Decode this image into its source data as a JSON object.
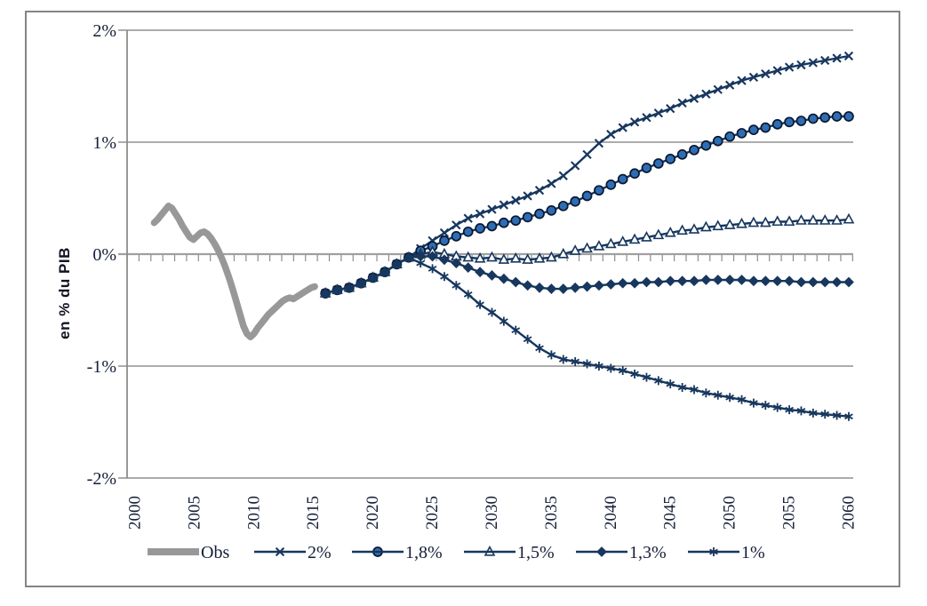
{
  "chart_data": {
    "type": "line",
    "title": "",
    "xlabel": "",
    "ylabel": "en % du PIB",
    "xlim": [
      2000,
      2060
    ],
    "ylim": [
      -2,
      2
    ],
    "grid": "horizontal-solid",
    "legend_position": "bottom",
    "y_ticks": [
      {
        "value": 2,
        "label": "2%"
      },
      {
        "value": 1,
        "label": "1%"
      },
      {
        "value": 0,
        "label": "0%"
      },
      {
        "value": -1,
        "label": "-1%"
      },
      {
        "value": -2,
        "label": "-2%"
      }
    ],
    "x_ticks": [
      {
        "value": 2000,
        "label": "2000"
      },
      {
        "value": 2005,
        "label": "2005"
      },
      {
        "value": 2010,
        "label": "2010"
      },
      {
        "value": 2015,
        "label": "2015"
      },
      {
        "value": 2020,
        "label": "2020"
      },
      {
        "value": 2025,
        "label": "2025"
      },
      {
        "value": 2030,
        "label": "2030"
      },
      {
        "value": 2035,
        "label": "2035"
      },
      {
        "value": 2040,
        "label": "2040"
      },
      {
        "value": 2045,
        "label": "2045"
      },
      {
        "value": 2050,
        "label": "2050"
      },
      {
        "value": 2055,
        "label": "2055"
      },
      {
        "value": 2060,
        "label": "2060"
      }
    ],
    "colors": {
      "obs": "#989898",
      "scenario": "#17375E",
      "circle_fill": "#2E6DB4",
      "marker_ring": "#0A1830",
      "grid": "#A0A0A0",
      "axis": "#8C8C8C",
      "text": "#141E38"
    },
    "series": [
      {
        "name": "Obs",
        "marker": "none",
        "role": "observed",
        "points": [
          [
            2001.6,
            0.28
          ],
          [
            2001.9,
            0.31
          ],
          [
            2002.2,
            0.35
          ],
          [
            2002.5,
            0.39
          ],
          [
            2002.8,
            0.43
          ],
          [
            2003.1,
            0.41
          ],
          [
            2003.4,
            0.36
          ],
          [
            2003.7,
            0.31
          ],
          [
            2004,
            0.25
          ],
          [
            2004.3,
            0.2
          ],
          [
            2004.6,
            0.15
          ],
          [
            2004.9,
            0.13
          ],
          [
            2005.2,
            0.16
          ],
          [
            2005.5,
            0.19
          ],
          [
            2005.8,
            0.2
          ],
          [
            2006.1,
            0.18
          ],
          [
            2006.4,
            0.14
          ],
          [
            2006.7,
            0.09
          ],
          [
            2007,
            0.03
          ],
          [
            2007.3,
            -0.04
          ],
          [
            2007.6,
            -0.12
          ],
          [
            2007.9,
            -0.21
          ],
          [
            2008.2,
            -0.31
          ],
          [
            2008.5,
            -0.42
          ],
          [
            2008.8,
            -0.53
          ],
          [
            2009.1,
            -0.64
          ],
          [
            2009.4,
            -0.71
          ],
          [
            2009.7,
            -0.74
          ],
          [
            2010,
            -0.71
          ],
          [
            2010.3,
            -0.66
          ],
          [
            2010.6,
            -0.62
          ],
          [
            2010.9,
            -0.58
          ],
          [
            2011.2,
            -0.54
          ],
          [
            2011.5,
            -0.51
          ],
          [
            2011.8,
            -0.48
          ],
          [
            2012.1,
            -0.45
          ],
          [
            2012.4,
            -0.42
          ],
          [
            2012.7,
            -0.4
          ],
          [
            2013,
            -0.39
          ],
          [
            2013.3,
            -0.4
          ],
          [
            2013.6,
            -0.38
          ],
          [
            2013.9,
            -0.36
          ],
          [
            2014.2,
            -0.34
          ],
          [
            2014.5,
            -0.32
          ],
          [
            2014.8,
            -0.3
          ],
          [
            2015.1,
            -0.29
          ]
        ]
      },
      {
        "name": "2%",
        "marker": "x",
        "role": "scenario",
        "points": [
          [
            2016,
            -0.35
          ],
          [
            2017,
            -0.32
          ],
          [
            2018,
            -0.3
          ],
          [
            2019,
            -0.26
          ],
          [
            2020,
            -0.21
          ],
          [
            2021,
            -0.16
          ],
          [
            2022,
            -0.09
          ],
          [
            2023,
            -0.03
          ],
          [
            2024,
            0.05
          ],
          [
            2025,
            0.12
          ],
          [
            2026,
            0.19
          ],
          [
            2027,
            0.26
          ],
          [
            2028,
            0.32
          ],
          [
            2029,
            0.36
          ],
          [
            2030,
            0.4
          ],
          [
            2031,
            0.44
          ],
          [
            2032,
            0.48
          ],
          [
            2033,
            0.52
          ],
          [
            2034,
            0.57
          ],
          [
            2035,
            0.63
          ],
          [
            2036,
            0.7
          ],
          [
            2037,
            0.79
          ],
          [
            2038,
            0.89
          ],
          [
            2039,
            0.99
          ],
          [
            2040,
            1.07
          ],
          [
            2041,
            1.13
          ],
          [
            2042,
            1.18
          ],
          [
            2043,
            1.22
          ],
          [
            2044,
            1.26
          ],
          [
            2045,
            1.3
          ],
          [
            2046,
            1.35
          ],
          [
            2047,
            1.39
          ],
          [
            2048,
            1.43
          ],
          [
            2049,
            1.47
          ],
          [
            2050,
            1.51
          ],
          [
            2051,
            1.55
          ],
          [
            2052,
            1.58
          ],
          [
            2053,
            1.61
          ],
          [
            2054,
            1.64
          ],
          [
            2055,
            1.67
          ],
          [
            2056,
            1.69
          ],
          [
            2057,
            1.71
          ],
          [
            2058,
            1.73
          ],
          [
            2059,
            1.75
          ],
          [
            2060,
            1.77
          ]
        ]
      },
      {
        "name": "1,8%",
        "marker": "circle",
        "role": "scenario",
        "points": [
          [
            2016,
            -0.35
          ],
          [
            2017,
            -0.32
          ],
          [
            2018,
            -0.3
          ],
          [
            2019,
            -0.26
          ],
          [
            2020,
            -0.21
          ],
          [
            2021,
            -0.16
          ],
          [
            2022,
            -0.09
          ],
          [
            2023,
            -0.03
          ],
          [
            2024,
            0.03
          ],
          [
            2025,
            0.07
          ],
          [
            2026,
            0.12
          ],
          [
            2027,
            0.16
          ],
          [
            2028,
            0.2
          ],
          [
            2029,
            0.23
          ],
          [
            2030,
            0.25
          ],
          [
            2031,
            0.28
          ],
          [
            2032,
            0.3
          ],
          [
            2033,
            0.33
          ],
          [
            2034,
            0.36
          ],
          [
            2035,
            0.39
          ],
          [
            2036,
            0.43
          ],
          [
            2037,
            0.47
          ],
          [
            2038,
            0.52
          ],
          [
            2039,
            0.57
          ],
          [
            2040,
            0.62
          ],
          [
            2041,
            0.67
          ],
          [
            2042,
            0.72
          ],
          [
            2043,
            0.77
          ],
          [
            2044,
            0.81
          ],
          [
            2045,
            0.85
          ],
          [
            2046,
            0.89
          ],
          [
            2047,
            0.93
          ],
          [
            2048,
            0.97
          ],
          [
            2049,
            1.01
          ],
          [
            2050,
            1.05
          ],
          [
            2051,
            1.08
          ],
          [
            2052,
            1.11
          ],
          [
            2053,
            1.13
          ],
          [
            2054,
            1.16
          ],
          [
            2055,
            1.18
          ],
          [
            2056,
            1.19
          ],
          [
            2057,
            1.21
          ],
          [
            2058,
            1.22
          ],
          [
            2059,
            1.23
          ],
          [
            2060,
            1.23
          ]
        ]
      },
      {
        "name": "1,5%",
        "marker": "triangle",
        "role": "scenario",
        "points": [
          [
            2016,
            -0.35
          ],
          [
            2017,
            -0.32
          ],
          [
            2018,
            -0.3
          ],
          [
            2019,
            -0.26
          ],
          [
            2020,
            -0.21
          ],
          [
            2021,
            -0.16
          ],
          [
            2022,
            -0.09
          ],
          [
            2023,
            -0.03
          ],
          [
            2024,
            0
          ],
          [
            2025,
            0.02
          ],
          [
            2026,
            0
          ],
          [
            2027,
            -0.02
          ],
          [
            2028,
            -0.03
          ],
          [
            2029,
            -0.04
          ],
          [
            2030,
            -0.03
          ],
          [
            2031,
            -0.05
          ],
          [
            2032,
            -0.04
          ],
          [
            2033,
            -0.05
          ],
          [
            2034,
            -0.04
          ],
          [
            2035,
            -0.03
          ],
          [
            2036,
            0
          ],
          [
            2037,
            0.03
          ],
          [
            2038,
            0.05
          ],
          [
            2039,
            0.07
          ],
          [
            2040,
            0.09
          ],
          [
            2041,
            0.11
          ],
          [
            2042,
            0.13
          ],
          [
            2043,
            0.15
          ],
          [
            2044,
            0.17
          ],
          [
            2045,
            0.19
          ],
          [
            2046,
            0.21
          ],
          [
            2047,
            0.22
          ],
          [
            2048,
            0.24
          ],
          [
            2049,
            0.25
          ],
          [
            2050,
            0.26
          ],
          [
            2051,
            0.27
          ],
          [
            2052,
            0.28
          ],
          [
            2053,
            0.28
          ],
          [
            2054,
            0.29
          ],
          [
            2055,
            0.29
          ],
          [
            2056,
            0.3
          ],
          [
            2057,
            0.3
          ],
          [
            2058,
            0.3
          ],
          [
            2059,
            0.3
          ],
          [
            2060,
            0.31
          ]
        ]
      },
      {
        "name": "1,3%",
        "marker": "diamond",
        "role": "scenario",
        "points": [
          [
            2016,
            -0.35
          ],
          [
            2017,
            -0.32
          ],
          [
            2018,
            -0.3
          ],
          [
            2019,
            -0.26
          ],
          [
            2020,
            -0.21
          ],
          [
            2021,
            -0.16
          ],
          [
            2022,
            -0.09
          ],
          [
            2023,
            -0.03
          ],
          [
            2024,
            -0.02
          ],
          [
            2025,
            -0.02
          ],
          [
            2026,
            -0.05
          ],
          [
            2027,
            -0.08
          ],
          [
            2028,
            -0.12
          ],
          [
            2029,
            -0.16
          ],
          [
            2030,
            -0.19
          ],
          [
            2031,
            -0.22
          ],
          [
            2032,
            -0.25
          ],
          [
            2033,
            -0.28
          ],
          [
            2034,
            -0.3
          ],
          [
            2035,
            -0.31
          ],
          [
            2036,
            -0.31
          ],
          [
            2037,
            -0.3
          ],
          [
            2038,
            -0.29
          ],
          [
            2039,
            -0.28
          ],
          [
            2040,
            -0.27
          ],
          [
            2041,
            -0.26
          ],
          [
            2042,
            -0.26
          ],
          [
            2043,
            -0.25
          ],
          [
            2044,
            -0.25
          ],
          [
            2045,
            -0.24
          ],
          [
            2046,
            -0.24
          ],
          [
            2047,
            -0.24
          ],
          [
            2048,
            -0.23
          ],
          [
            2049,
            -0.23
          ],
          [
            2050,
            -0.23
          ],
          [
            2051,
            -0.23
          ],
          [
            2052,
            -0.24
          ],
          [
            2053,
            -0.24
          ],
          [
            2054,
            -0.24
          ],
          [
            2055,
            -0.24
          ],
          [
            2056,
            -0.25
          ],
          [
            2057,
            -0.25
          ],
          [
            2058,
            -0.25
          ],
          [
            2059,
            -0.25
          ],
          [
            2060,
            -0.25
          ]
        ]
      },
      {
        "name": "1%",
        "marker": "star",
        "role": "scenario",
        "points": [
          [
            2016,
            -0.35
          ],
          [
            2017,
            -0.32
          ],
          [
            2018,
            -0.3
          ],
          [
            2019,
            -0.26
          ],
          [
            2020,
            -0.21
          ],
          [
            2021,
            -0.16
          ],
          [
            2022,
            -0.09
          ],
          [
            2023,
            -0.03
          ],
          [
            2024,
            -0.08
          ],
          [
            2025,
            -0.13
          ],
          [
            2026,
            -0.2
          ],
          [
            2027,
            -0.28
          ],
          [
            2028,
            -0.36
          ],
          [
            2029,
            -0.45
          ],
          [
            2030,
            -0.52
          ],
          [
            2031,
            -0.6
          ],
          [
            2032,
            -0.68
          ],
          [
            2033,
            -0.76
          ],
          [
            2034,
            -0.84
          ],
          [
            2035,
            -0.9
          ],
          [
            2036,
            -0.94
          ],
          [
            2037,
            -0.96
          ],
          [
            2038,
            -0.98
          ],
          [
            2039,
            -1
          ],
          [
            2040,
            -1.02
          ],
          [
            2041,
            -1.04
          ],
          [
            2042,
            -1.07
          ],
          [
            2043,
            -1.1
          ],
          [
            2044,
            -1.13
          ],
          [
            2045,
            -1.16
          ],
          [
            2046,
            -1.19
          ],
          [
            2047,
            -1.21
          ],
          [
            2048,
            -1.24
          ],
          [
            2049,
            -1.26
          ],
          [
            2050,
            -1.28
          ],
          [
            2051,
            -1.3
          ],
          [
            2052,
            -1.33
          ],
          [
            2053,
            -1.35
          ],
          [
            2054,
            -1.37
          ],
          [
            2055,
            -1.39
          ],
          [
            2056,
            -1.4
          ],
          [
            2057,
            -1.42
          ],
          [
            2058,
            -1.43
          ],
          [
            2059,
            -1.44
          ],
          [
            2060,
            -1.45
          ]
        ]
      }
    ],
    "legend": [
      {
        "label": "Obs"
      },
      {
        "label": "2%"
      },
      {
        "label": "1,8%"
      },
      {
        "label": "1,5%"
      },
      {
        "label": "1,3%"
      },
      {
        "label": "1%"
      }
    ]
  }
}
